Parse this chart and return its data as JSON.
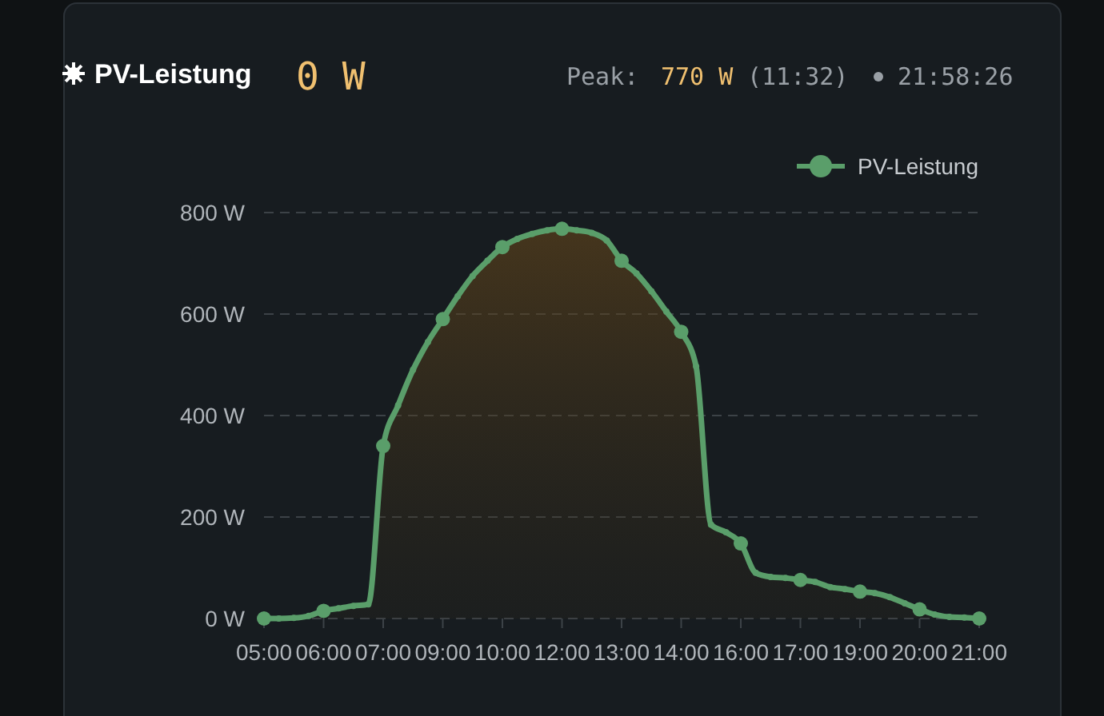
{
  "chart_data": {
    "type": "area",
    "title": "PV-Leistung",
    "annotations": [
      "0 W",
      "Peak:",
      "770 W",
      "(11:32)",
      "21:58:26"
    ],
    "categories": [
      "05:00",
      null,
      null,
      null,
      "06:00",
      null,
      null,
      null,
      "07:00",
      null,
      null,
      null,
      "09:00",
      null,
      null,
      null,
      "10:00",
      null,
      null,
      null,
      "12:00",
      null,
      null,
      null,
      "13:00",
      null,
      null,
      null,
      "14:00",
      null,
      null,
      null,
      "16:00",
      null,
      null,
      null,
      "17:00",
      null,
      null,
      null,
      "19:00",
      null,
      null,
      null,
      "20:00",
      null,
      null,
      null,
      "21:00"
    ],
    "series": [
      {
        "name": "PV-Leistung",
        "color": "#5a9e6a",
        "values": [
          0,
          0,
          1,
          5,
          15,
          20,
          25,
          28,
          340,
          420,
          490,
          545,
          590,
          635,
          675,
          705,
          732,
          748,
          758,
          765,
          768,
          765,
          760,
          745,
          705,
          680,
          645,
          605,
          565,
          497,
          185,
          170,
          148,
          90,
          82,
          80,
          76,
          72,
          62,
          58,
          53,
          50,
          42,
          30,
          18,
          8,
          3,
          2,
          0
        ]
      }
    ],
    "ylim": [
      0,
      800
    ],
    "yticks": [
      {
        "value": 0,
        "label": "0 W"
      },
      {
        "value": 200,
        "label": "200 W"
      },
      {
        "value": 400,
        "label": "400 W"
      },
      {
        "value": 600,
        "label": "600 W"
      },
      {
        "value": 800,
        "label": "800 W"
      }
    ],
    "grid": "y",
    "legend": "top right",
    "marker": "circle",
    "line_style": "solid"
  }
}
